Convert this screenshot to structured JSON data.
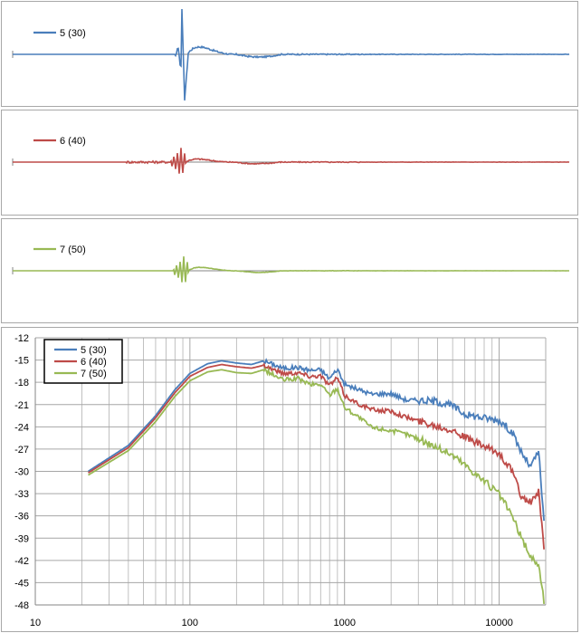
{
  "colors": {
    "s5": "#4a7ebb",
    "s6": "#be4b48",
    "s7": "#98b954",
    "grid": "#a6a6a6",
    "axis": "#868686"
  },
  "chart_data": [
    {
      "type": "line",
      "title": "",
      "series": [
        {
          "name": "5 (30)",
          "color": "#4a7ebb"
        }
      ],
      "impulse": {
        "peak_pos": 1.0,
        "peak_neg": -1.0,
        "ring": 0.45,
        "noise": 0.04
      }
    },
    {
      "type": "line",
      "title": "",
      "series": [
        {
          "name": "6 (40)",
          "color": "#be4b48"
        }
      ],
      "impulse": {
        "peak_pos": 0.6,
        "peak_neg": -0.45,
        "ring": 0.3,
        "noise": 0.05
      }
    },
    {
      "type": "line",
      "title": "",
      "series": [
        {
          "name": "7 (50)",
          "color": "#98b954"
        }
      ],
      "impulse": {
        "peak_pos": 0.6,
        "peak_neg": -0.3,
        "ring": 0.35,
        "noise": 0.02
      }
    },
    {
      "type": "line",
      "xscale": "log",
      "xlim": [
        10,
        20000
      ],
      "ylim": [
        -48,
        -12
      ],
      "xticks": [
        10,
        100,
        1000,
        10000
      ],
      "xtick_labels": [
        "10",
        "100",
        "1000",
        "10000"
      ],
      "yticks": [
        -12,
        -15,
        -18,
        -21,
        -24,
        -27,
        -30,
        -33,
        -36,
        -39,
        -42,
        -45,
        -48
      ],
      "ytick_labels": [
        "-12",
        "-15",
        "-18",
        "-21",
        "-24",
        "-27",
        "-30",
        "-33",
        "-36",
        "-39",
        "-42",
        "-45",
        "-48"
      ],
      "grid": true,
      "legend": "top-left",
      "series": [
        {
          "name": "5 (30)",
          "color": "#4a7ebb",
          "x": [
            22,
            40,
            60,
            80,
            100,
            130,
            160,
            200,
            250,
            300,
            400,
            500,
            600,
            700,
            800,
            900,
            1000,
            1200,
            1500,
            2000,
            2500,
            3000,
            4000,
            5000,
            6000,
            8000,
            10000,
            12000,
            14000,
            16000,
            18000,
            19500
          ],
          "y": [
            -30,
            -26.5,
            -22.5,
            -19,
            -16.8,
            -15.5,
            -15.1,
            -15.4,
            -15.6,
            -15.1,
            -16.1,
            -16,
            -16.4,
            -16.3,
            -17.5,
            -16.2,
            -18.3,
            -18.9,
            -19.6,
            -19.5,
            -20.4,
            -20.4,
            -20.6,
            -21.2,
            -22.3,
            -22.8,
            -23.1,
            -24.6,
            -27.5,
            -29.5,
            -27.2,
            -37
          ]
        },
        {
          "name": "6 (40)",
          "color": "#be4b48",
          "x": [
            22,
            40,
            60,
            80,
            100,
            130,
            160,
            200,
            250,
            300,
            400,
            500,
            600,
            700,
            800,
            900,
            1000,
            1200,
            1500,
            2000,
            2500,
            3000,
            4000,
            5000,
            6000,
            8000,
            10000,
            12000,
            14000,
            16000,
            18000,
            19500
          ],
          "y": [
            -30.2,
            -26.8,
            -22.8,
            -19.4,
            -17.2,
            -16,
            -15.6,
            -15.9,
            -16.1,
            -15.7,
            -16.8,
            -16.7,
            -17.2,
            -17.1,
            -18.4,
            -17.4,
            -19.8,
            -20.8,
            -21.7,
            -21.9,
            -22.7,
            -23.2,
            -23.9,
            -24.4,
            -25.4,
            -26.7,
            -27.6,
            -29.8,
            -33.5,
            -34.2,
            -32.8,
            -40.5
          ]
        },
        {
          "name": "7 (50)",
          "color": "#98b954",
          "x": [
            22,
            40,
            60,
            80,
            100,
            130,
            160,
            200,
            250,
            300,
            400,
            500,
            600,
            700,
            800,
            900,
            1000,
            1200,
            1500,
            2000,
            2500,
            3000,
            4000,
            5000,
            6000,
            8000,
            10000,
            12000,
            14000,
            16000,
            18000,
            19500
          ],
          "y": [
            -30.5,
            -27.2,
            -23.3,
            -19.9,
            -17.8,
            -16.6,
            -16.3,
            -16.7,
            -16.8,
            -16.3,
            -17.7,
            -17.5,
            -18.3,
            -18.3,
            -19.7,
            -18.8,
            -21.4,
            -22.5,
            -24.1,
            -24.5,
            -25,
            -25.6,
            -26.8,
            -27.8,
            -29.1,
            -31.3,
            -33.1,
            -35.8,
            -39.1,
            -41.5,
            -42.6,
            -47.5
          ]
        }
      ]
    }
  ]
}
